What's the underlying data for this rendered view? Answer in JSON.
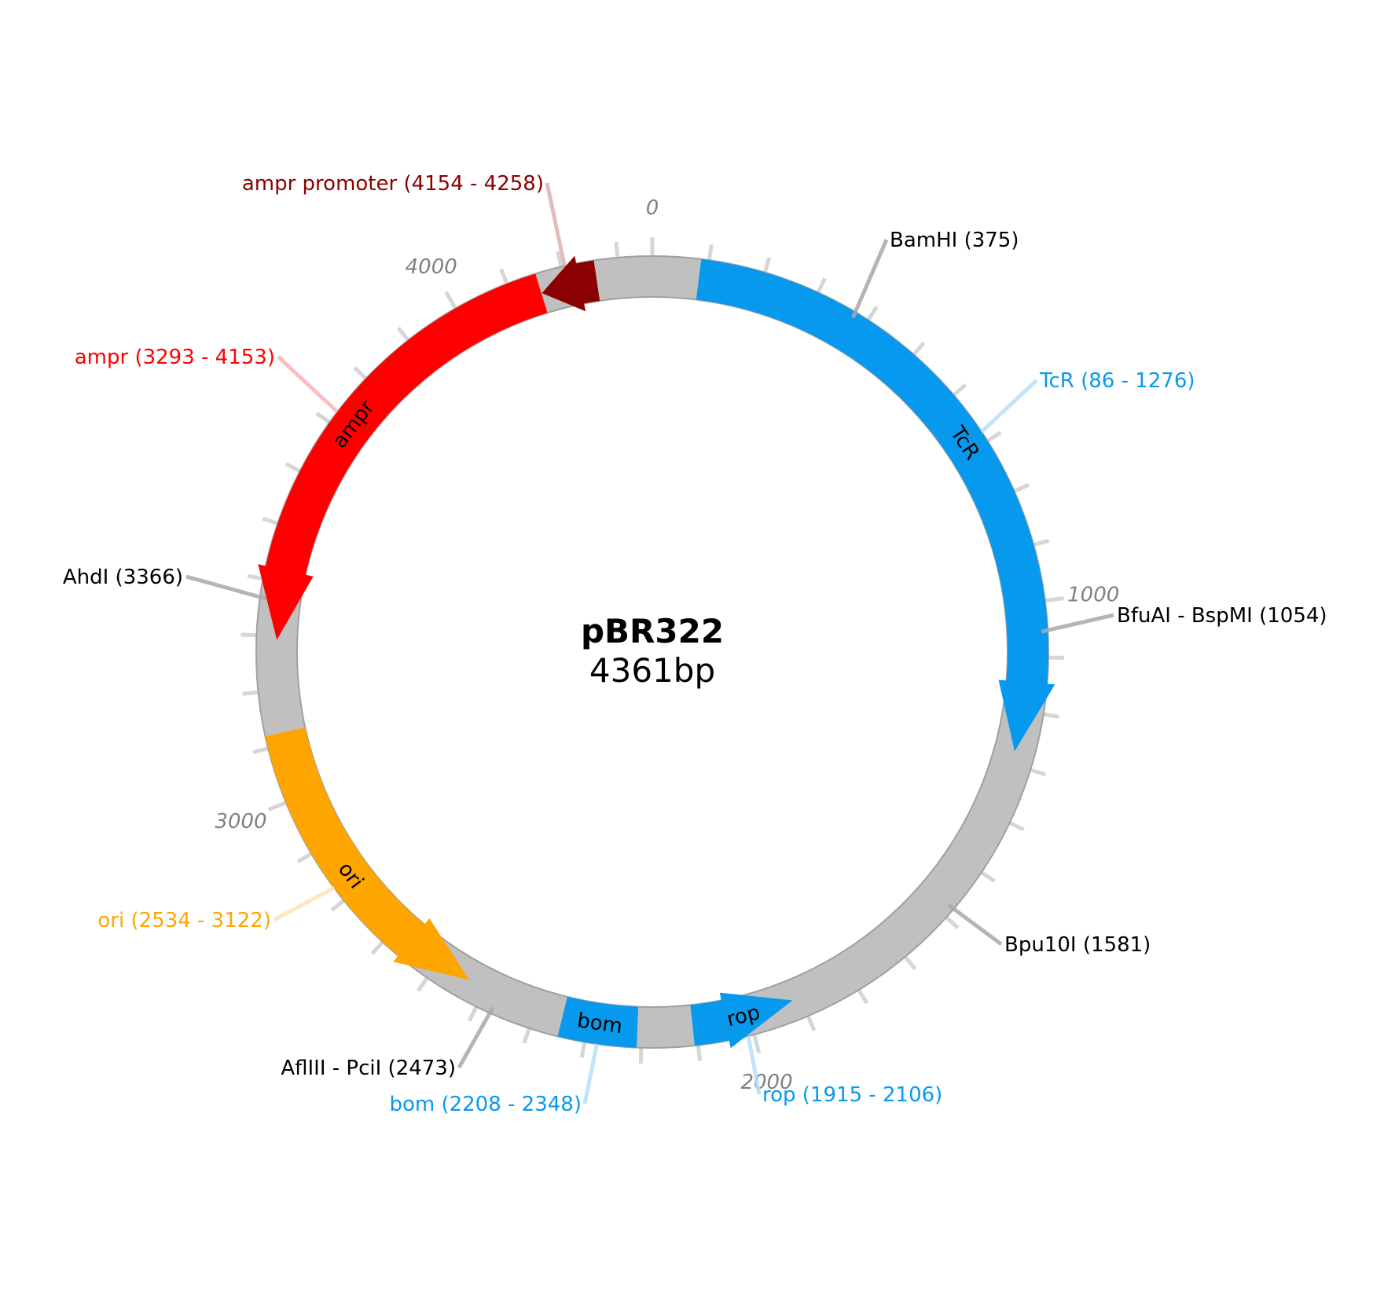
{
  "plasmid": {
    "name": "pBR322",
    "size_label": "4361bp",
    "length": 4361
  },
  "colors": {
    "backbone": "#c0c0c0",
    "backbone_edge": "#a0a0a0",
    "tick": "#d6d6d6",
    "tick_label": "#808080",
    "site_line": "#a8a8a8",
    "site_text": "#000000",
    "TcR": "#0799ee",
    "rop": "#0799ee",
    "bom": "#0799ee",
    "ori": "#ffa500",
    "ampr": "#ff0000",
    "ampr_promoter": "#8b0000"
  },
  "ticks": {
    "minor_step": 100,
    "labeled": [
      "0",
      "1000",
      "2000",
      "3000",
      "4000"
    ]
  },
  "features": [
    {
      "id": "TcR",
      "name": "TcR",
      "start": 86,
      "end": 1276,
      "strand": 1,
      "label": "TcR (86 - 1276)",
      "show_name": true,
      "color": "#0799ee",
      "label_color": "#0799ee"
    },
    {
      "id": "rop",
      "name": "rop",
      "start": 1915,
      "end": 2106,
      "strand": -1,
      "label": "rop (1915 - 2106)",
      "show_name": true,
      "color": "#0799ee",
      "label_color": "#0799ee"
    },
    {
      "id": "bom",
      "name": "bom",
      "start": 2208,
      "end": 2348,
      "strand": 0,
      "label": "bom (2208 - 2348)",
      "show_name": true,
      "color": "#0799ee",
      "label_color": "#0799ee"
    },
    {
      "id": "ori",
      "name": "ori",
      "start": 2534,
      "end": 3122,
      "strand": -1,
      "label": "ori (2534 - 3122)",
      "show_name": true,
      "color": "#ffa500",
      "label_color": "#ffa500"
    },
    {
      "id": "ampr",
      "name": "ampr",
      "start": 3293,
      "end": 4153,
      "strand": -1,
      "label": "ampr (3293 - 4153)",
      "show_name": true,
      "color": "#ff0000",
      "label_color": "#ff0000"
    },
    {
      "id": "ampr-promoter",
      "name": "",
      "start": 4154,
      "end": 4258,
      "strand": -1,
      "label": "ampr promoter (4154 - 4258)",
      "show_name": false,
      "color": "#8b0000",
      "label_color": "#8b0000"
    }
  ],
  "sites": [
    {
      "id": "bamhi",
      "position": 375,
      "label": "BamHI (375)"
    },
    {
      "id": "bfuai-bspmi",
      "position": 1054,
      "label": "BfuAI - BspMI (1054)"
    },
    {
      "id": "bpu10i",
      "position": 1581,
      "label": "Bpu10I (1581)"
    },
    {
      "id": "afliii-pcii",
      "position": 2473,
      "label": "AflIII - PciI (2473)"
    },
    {
      "id": "ahdi",
      "position": 3366,
      "label": "AhdI (3366)"
    }
  ]
}
